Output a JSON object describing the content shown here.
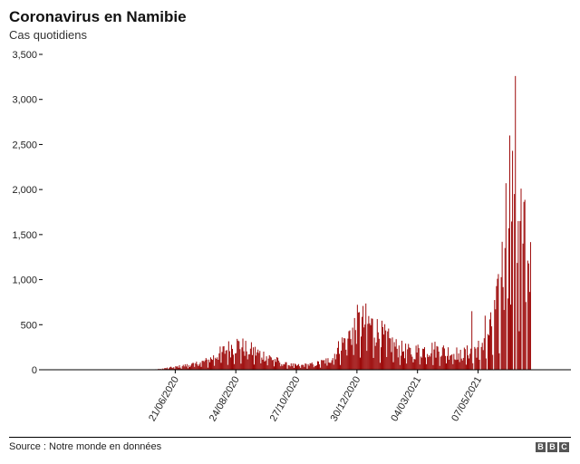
{
  "header": {
    "title": "Coronavirus en Namibie",
    "subtitle": "Cas quotidiens"
  },
  "footer": {
    "source": "Source : Notre monde en données",
    "logo": [
      "B",
      "B",
      "C"
    ]
  },
  "colors": {
    "bar": "#990000",
    "axis": "#000000",
    "grid": "#dddddd"
  },
  "chart_data": {
    "type": "bar",
    "title": "Coronavirus en Namibie",
    "subtitle": "Cas quotidiens",
    "xlabel": "",
    "ylabel": "",
    "ylim": [
      0,
      3500
    ],
    "yticks": [
      0,
      500,
      1000,
      1500,
      2000,
      2500,
      3000,
      3500
    ],
    "ytick_labels": [
      "0",
      "500",
      "1,000",
      "1,500",
      "2,000",
      "2,500",
      "3,000",
      "3,500"
    ],
    "xtick_labels": [
      "21/06/2020",
      "24/08/2020",
      "27/10/2020",
      "30/12/2020",
      "04/03/2021",
      "07/05/2021"
    ],
    "date_start": "2020-03-14",
    "date_end": "2021-07-01",
    "grid": false,
    "weekly_avg": [
      {
        "date": "2020-03-14",
        "value": 1
      },
      {
        "date": "2020-05-01",
        "value": 1
      },
      {
        "date": "2020-06-01",
        "value": 5
      },
      {
        "date": "2020-06-21",
        "value": 30
      },
      {
        "date": "2020-07-10",
        "value": 60
      },
      {
        "date": "2020-07-25",
        "value": 100
      },
      {
        "date": "2020-08-10",
        "value": 200
      },
      {
        "date": "2020-08-24",
        "value": 280
      },
      {
        "date": "2020-09-05",
        "value": 230
      },
      {
        "date": "2020-09-25",
        "value": 150
      },
      {
        "date": "2020-10-15",
        "value": 60
      },
      {
        "date": "2020-10-27",
        "value": 45
      },
      {
        "date": "2020-11-15",
        "value": 60
      },
      {
        "date": "2020-12-01",
        "value": 110
      },
      {
        "date": "2020-12-15",
        "value": 300
      },
      {
        "date": "2020-12-30",
        "value": 500
      },
      {
        "date": "2021-01-10",
        "value": 520
      },
      {
        "date": "2021-01-25",
        "value": 380
      },
      {
        "date": "2021-02-10",
        "value": 240
      },
      {
        "date": "2021-02-25",
        "value": 190
      },
      {
        "date": "2021-03-04",
        "value": 210
      },
      {
        "date": "2021-03-20",
        "value": 230
      },
      {
        "date": "2021-04-05",
        "value": 200
      },
      {
        "date": "2021-04-20",
        "value": 170
      },
      {
        "date": "2021-05-07",
        "value": 240
      },
      {
        "date": "2021-05-20",
        "value": 450
      },
      {
        "date": "2021-06-01",
        "value": 900
      },
      {
        "date": "2021-06-10",
        "value": 1300
      },
      {
        "date": "2021-06-20",
        "value": 1700
      },
      {
        "date": "2021-06-25",
        "value": 1600
      },
      {
        "date": "2021-07-01",
        "value": 1300
      }
    ],
    "spikes": [
      {
        "date": "2021-04-30",
        "value": 650
      },
      {
        "date": "2021-05-14",
        "value": 600
      },
      {
        "date": "2021-06-01",
        "value": 1420
      },
      {
        "date": "2021-06-05",
        "value": 2070
      },
      {
        "date": "2021-06-09",
        "value": 2600
      },
      {
        "date": "2021-06-12",
        "value": 2430
      },
      {
        "date": "2021-06-14",
        "value": 1950
      },
      {
        "date": "2021-06-15",
        "value": 3260
      },
      {
        "date": "2021-06-18",
        "value": 1650
      },
      {
        "date": "2021-06-20",
        "value": 1650
      },
      {
        "date": "2021-06-23",
        "value": 1400
      },
      {
        "date": "2021-06-29",
        "value": 1180
      }
    ],
    "gaps": [
      "2021-05-02",
      "2021-05-09",
      "2021-05-16",
      "2021-05-23",
      "2021-05-30",
      "2021-06-06",
      "2021-06-13",
      "2021-06-16",
      "2021-06-22",
      "2021-06-27"
    ]
  }
}
